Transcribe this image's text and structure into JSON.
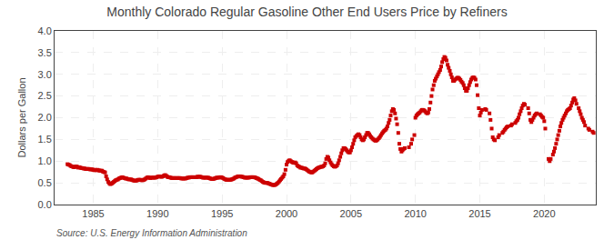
{
  "chart_data": {
    "type": "scatter",
    "title": "Monthly Colorado Regular Gasoline Other End Users Price by Refiners",
    "ylabel": "Dollars per Gallon",
    "annotations": [
      "Source: U.S. Energy Information Administration"
    ],
    "color": "#cc0000",
    "marker": "square",
    "grid": true,
    "xlim": [
      1982.0,
      2024.0
    ],
    "ylim": [
      0.0,
      4.0
    ],
    "xticks": [
      1985,
      1990,
      1995,
      2000,
      2005,
      2010,
      2015,
      2020
    ],
    "yticks": [
      {
        "value": 0.0,
        "label": "0.0"
      },
      0.5,
      {
        "value": 1.0,
        "label": "1.0"
      },
      1.5,
      {
        "value": 2.0,
        "label": "2.0"
      },
      2.5,
      {
        "value": 3.0,
        "label": "3.0"
      },
      3.5,
      {
        "value": 4.0,
        "label": "4.0"
      }
    ],
    "x": [
      1983.0,
      1983.08,
      1983.17,
      1983.25,
      1983.33,
      1983.42,
      1983.5,
      1983.58,
      1983.67,
      1983.75,
      1983.83,
      1983.92,
      1984.0,
      1984.08,
      1984.17,
      1984.25,
      1984.33,
      1984.42,
      1984.5,
      1984.58,
      1984.67,
      1984.75,
      1984.83,
      1984.92,
      1985.0,
      1985.08,
      1985.17,
      1985.25,
      1985.33,
      1985.42,
      1985.5,
      1985.58,
      1985.67,
      1985.75,
      1985.83,
      1985.92,
      1986.0,
      1986.08,
      1986.17,
      1986.25,
      1986.33,
      1986.42,
      1986.5,
      1986.58,
      1986.67,
      1986.75,
      1986.83,
      1986.92,
      1987.0,
      1987.08,
      1987.17,
      1987.25,
      1987.33,
      1987.42,
      1987.5,
      1987.58,
      1987.67,
      1987.75,
      1987.83,
      1987.92,
      1988.0,
      1988.08,
      1988.17,
      1988.25,
      1988.33,
      1988.42,
      1988.5,
      1988.58,
      1988.67,
      1988.75,
      1988.83,
      1988.92,
      1989.0,
      1989.08,
      1989.17,
      1989.25,
      1989.33,
      1989.42,
      1989.5,
      1989.58,
      1989.67,
      1989.75,
      1989.83,
      1989.92,
      1990.0,
      1990.08,
      1990.17,
      1990.25,
      1990.33,
      1990.42,
      1990.5,
      1990.58,
      1990.67,
      1990.75,
      1990.83,
      1990.92,
      1991.0,
      1991.08,
      1991.17,
      1991.25,
      1991.33,
      1991.42,
      1991.5,
      1991.58,
      1991.67,
      1991.75,
      1991.83,
      1991.92,
      1992.0,
      1992.08,
      1992.17,
      1992.25,
      1992.33,
      1992.42,
      1992.5,
      1992.58,
      1992.67,
      1992.75,
      1992.83,
      1992.92,
      1993.0,
      1993.08,
      1993.17,
      1993.25,
      1993.33,
      1993.42,
      1993.5,
      1993.58,
      1993.67,
      1993.75,
      1993.83,
      1993.92,
      1994.0,
      1994.08,
      1994.17,
      1994.25,
      1994.33,
      1994.42,
      1994.5,
      1994.58,
      1994.67,
      1994.75,
      1994.83,
      1994.92,
      1995.0,
      1995.08,
      1995.17,
      1995.25,
      1995.33,
      1995.42,
      1995.5,
      1995.58,
      1995.67,
      1995.75,
      1995.83,
      1995.92,
      1996.0,
      1996.08,
      1996.17,
      1996.25,
      1996.33,
      1996.42,
      1996.5,
      1996.58,
      1996.67,
      1996.75,
      1996.83,
      1996.92,
      1997.0,
      1997.08,
      1997.17,
      1997.25,
      1997.33,
      1997.42,
      1997.5,
      1997.58,
      1997.67,
      1997.75,
      1997.83,
      1997.92,
      1998.0,
      1998.08,
      1998.17,
      1998.25,
      1998.33,
      1998.42,
      1998.5,
      1998.58,
      1998.67,
      1998.75,
      1998.83,
      1998.92,
      1999.0,
      1999.08,
      1999.17,
      1999.25,
      1999.33,
      1999.42,
      1999.5,
      1999.58,
      1999.67,
      1999.75,
      1999.83,
      1999.92,
      2000.0,
      2000.08,
      2000.17,
      2000.25,
      2000.33,
      2000.42,
      2000.5,
      2000.58,
      2000.67,
      2000.75,
      2000.83,
      2000.92,
      2001.0,
      2001.08,
      2001.17,
      2001.25,
      2001.33,
      2001.42,
      2001.5,
      2001.58,
      2001.67,
      2001.75,
      2001.83,
      2001.92,
      2002.0,
      2002.08,
      2002.17,
      2002.25,
      2002.33,
      2002.42,
      2002.5,
      2002.58,
      2002.67,
      2002.75,
      2002.83,
      2002.92,
      2003.0,
      2003.08,
      2003.17,
      2003.25,
      2003.33,
      2003.42,
      2003.5,
      2003.58,
      2003.67,
      2003.75,
      2003.83,
      2003.92,
      2004.0,
      2004.08,
      2004.17,
      2004.25,
      2004.33,
      2004.42,
      2004.5,
      2004.58,
      2004.67,
      2004.75,
      2004.83,
      2004.92,
      2005.0,
      2005.08,
      2005.17,
      2005.25,
      2005.33,
      2005.42,
      2005.5,
      2005.58,
      2005.67,
      2005.75,
      2005.83,
      2005.92,
      2006.0,
      2006.08,
      2006.17,
      2006.25,
      2006.33,
      2006.42,
      2006.5,
      2006.58,
      2006.67,
      2006.75,
      2006.83,
      2006.92,
      2007.0,
      2007.08,
      2007.17,
      2007.25,
      2007.33,
      2007.42,
      2007.5,
      2007.58,
      2007.67,
      2007.75,
      2007.83,
      2007.92,
      2008.0,
      2008.08,
      2008.17,
      2008.25,
      2008.33,
      2008.42,
      2008.5,
      2008.58,
      2008.67,
      2008.75,
      2008.83,
      2008.92,
      2009.0,
      2009.08,
      2009.17,
      2009.5,
      2009.67,
      2009.75,
      2009.92,
      2010.0,
      2010.08,
      2010.17,
      2010.25,
      2010.33,
      2010.42,
      2010.5,
      2010.58,
      2010.67,
      2010.75,
      2010.83,
      2010.92,
      2011.0,
      2011.08,
      2011.17,
      2011.25,
      2011.33,
      2011.42,
      2011.5,
      2011.58,
      2011.67,
      2011.75,
      2011.83,
      2011.92,
      2012.0,
      2012.08,
      2012.17,
      2012.25,
      2012.33,
      2012.42,
      2012.5,
      2012.58,
      2012.67,
      2012.75,
      2012.83,
      2012.92,
      2013.0,
      2013.08,
      2013.17,
      2013.25,
      2013.33,
      2013.42,
      2013.5,
      2013.58,
      2013.67,
      2013.75,
      2013.83,
      2013.92,
      2014.0,
      2014.08,
      2014.17,
      2014.25,
      2014.33,
      2014.42,
      2014.5,
      2014.58,
      2014.67,
      2014.75,
      2014.83,
      2014.92,
      2015.0,
      2015.08,
      2015.17,
      2015.42,
      2015.5,
      2015.75,
      2015.83,
      2015.92,
      2016.0,
      2016.08,
      2016.17,
      2016.42,
      2016.5,
      2016.75,
      2016.83,
      2016.92,
      2017.0,
      2017.08,
      2017.17,
      2017.42,
      2017.5,
      2017.75,
      2017.83,
      2017.92,
      2018.0,
      2018.08,
      2018.17,
      2018.25,
      2018.33,
      2018.42,
      2018.5,
      2018.75,
      2018.83,
      2018.92,
      2019.0,
      2019.08,
      2019.17,
      2019.25,
      2019.33,
      2019.42,
      2019.67,
      2019.75,
      2019.83,
      2019.92,
      2020.0,
      2020.08,
      2020.33,
      2020.42,
      2020.5,
      2020.67,
      2020.75,
      2020.83,
      2020.92,
      2021.0,
      2021.08,
      2021.17,
      2021.25,
      2021.33,
      2021.42,
      2021.5,
      2021.58,
      2021.67,
      2021.75,
      2021.83,
      2021.92,
      2022.0,
      2022.08,
      2022.17,
      2022.25,
      2022.33,
      2022.42,
      2022.5,
      2022.67,
      2022.75,
      2022.83,
      2022.92,
      2023.0,
      2023.08,
      2023.17,
      2023.42,
      2023.5,
      2023.75,
      2023.83
    ],
    "values": [
      0.93,
      0.92,
      0.91,
      0.89,
      0.88,
      0.87,
      0.86,
      0.87,
      0.88,
      0.87,
      0.85,
      0.86,
      0.85,
      0.84,
      0.84,
      0.83,
      0.83,
      0.82,
      0.82,
      0.82,
      0.82,
      0.81,
      0.81,
      0.81,
      0.8,
      0.79,
      0.8,
      0.79,
      0.8,
      0.79,
      0.78,
      0.78,
      0.78,
      0.76,
      0.75,
      0.74,
      0.65,
      0.58,
      0.52,
      0.49,
      0.47,
      0.48,
      0.5,
      0.52,
      0.54,
      0.56,
      0.57,
      0.58,
      0.6,
      0.61,
      0.62,
      0.63,
      0.62,
      0.61,
      0.6,
      0.6,
      0.59,
      0.58,
      0.58,
      0.58,
      0.57,
      0.56,
      0.55,
      0.55,
      0.55,
      0.56,
      0.57,
      0.57,
      0.57,
      0.56,
      0.56,
      0.57,
      0.58,
      0.6,
      0.62,
      0.63,
      0.62,
      0.61,
      0.62,
      0.62,
      0.62,
      0.62,
      0.62,
      0.63,
      0.64,
      0.65,
      0.65,
      0.64,
      0.64,
      0.65,
      0.67,
      0.68,
      0.66,
      0.64,
      0.63,
      0.63,
      0.62,
      0.61,
      0.61,
      0.61,
      0.61,
      0.61,
      0.61,
      0.61,
      0.61,
      0.61,
      0.6,
      0.6,
      0.6,
      0.6,
      0.6,
      0.61,
      0.62,
      0.62,
      0.63,
      0.63,
      0.63,
      0.63,
      0.63,
      0.63,
      0.63,
      0.64,
      0.64,
      0.64,
      0.64,
      0.63,
      0.62,
      0.62,
      0.62,
      0.62,
      0.62,
      0.62,
      0.61,
      0.6,
      0.59,
      0.59,
      0.59,
      0.6,
      0.61,
      0.62,
      0.62,
      0.62,
      0.63,
      0.63,
      0.62,
      0.61,
      0.59,
      0.58,
      0.57,
      0.57,
      0.57,
      0.57,
      0.57,
      0.58,
      0.59,
      0.6,
      0.62,
      0.63,
      0.64,
      0.65,
      0.65,
      0.65,
      0.64,
      0.64,
      0.63,
      0.62,
      0.62,
      0.62,
      0.62,
      0.62,
      0.63,
      0.63,
      0.63,
      0.63,
      0.63,
      0.62,
      0.61,
      0.6,
      0.59,
      0.57,
      0.56,
      0.54,
      0.52,
      0.51,
      0.5,
      0.5,
      0.5,
      0.49,
      0.48,
      0.47,
      0.46,
      0.45,
      0.45,
      0.45,
      0.46,
      0.48,
      0.5,
      0.53,
      0.56,
      0.59,
      0.62,
      0.65,
      0.7,
      0.8,
      0.92,
      0.98,
      1.01,
      1.02,
      1.0,
      0.98,
      0.97,
      0.96,
      0.97,
      0.95,
      0.9,
      0.88,
      0.87,
      0.85,
      0.85,
      0.84,
      0.83,
      0.83,
      0.82,
      0.8,
      0.78,
      0.76,
      0.75,
      0.74,
      0.74,
      0.76,
      0.78,
      0.8,
      0.82,
      0.84,
      0.85,
      0.86,
      0.87,
      0.87,
      0.88,
      0.9,
      0.95,
      1.05,
      1.1,
      1.08,
      1.02,
      0.97,
      0.93,
      0.9,
      0.88,
      0.87,
      0.88,
      0.9,
      0.95,
      1.02,
      1.1,
      1.18,
      1.25,
      1.3,
      1.3,
      1.28,
      1.25,
      1.22,
      1.2,
      1.2,
      1.25,
      1.32,
      1.4,
      1.48,
      1.55,
      1.58,
      1.6,
      1.62,
      1.6,
      1.55,
      1.5,
      1.48,
      1.5,
      1.55,
      1.6,
      1.65,
      1.65,
      1.62,
      1.58,
      1.55,
      1.52,
      1.5,
      1.48,
      1.47,
      1.48,
      1.5,
      1.53,
      1.56,
      1.6,
      1.64,
      1.67,
      1.7,
      1.72,
      1.75,
      1.8,
      1.88,
      1.95,
      2.05,
      2.15,
      2.2,
      2.18,
      2.1,
      1.98,
      1.85,
      1.65,
      1.4,
      1.28,
      1.22,
      1.25,
      1.28,
      1.3,
      1.32,
      1.4,
      1.5,
      1.6,
      2.0,
      2.05,
      2.08,
      2.1,
      2.12,
      2.15,
      2.18,
      2.18,
      2.17,
      2.15,
      2.12,
      2.1,
      2.12,
      2.2,
      2.35,
      2.5,
      2.65,
      2.75,
      2.85,
      2.9,
      2.95,
      3.0,
      3.05,
      3.1,
      3.18,
      3.28,
      3.35,
      3.4,
      3.38,
      3.32,
      3.22,
      3.15,
      3.08,
      3.0,
      2.93,
      2.85,
      2.85,
      2.88,
      2.9,
      2.92,
      2.92,
      2.9,
      2.87,
      2.83,
      2.8,
      2.75,
      2.68,
      2.62,
      2.62,
      2.68,
      2.75,
      2.82,
      2.88,
      2.92,
      2.93,
      2.92,
      2.88,
      2.75,
      2.52,
      2.22,
      2.05,
      2.12,
      2.18,
      2.2,
      2.18,
      2.1,
      1.95,
      1.75,
      1.55,
      1.5,
      1.48,
      1.55,
      1.6,
      1.65,
      1.68,
      1.72,
      1.75,
      1.78,
      1.8,
      1.82,
      1.85,
      1.88,
      1.92,
      1.95,
      2.0,
      2.08,
      2.15,
      2.22,
      2.28,
      2.32,
      2.3,
      2.22,
      2.1,
      1.95,
      1.9,
      1.95,
      2.0,
      2.05,
      2.08,
      2.1,
      2.08,
      2.05,
      2.02,
      2.0,
      1.92,
      1.75,
      1.05,
      1.0,
      1.05,
      1.15,
      1.22,
      1.3,
      1.4,
      1.5,
      1.6,
      1.7,
      1.8,
      1.88,
      1.95,
      2.0,
      2.05,
      2.1,
      2.15,
      2.18,
      2.2,
      2.22,
      2.28,
      2.35,
      2.42,
      2.45,
      2.4,
      2.32,
      2.22,
      2.15,
      2.08,
      2.0,
      1.95,
      1.9,
      1.82,
      1.75,
      1.72,
      1.68,
      1.65
    ]
  }
}
